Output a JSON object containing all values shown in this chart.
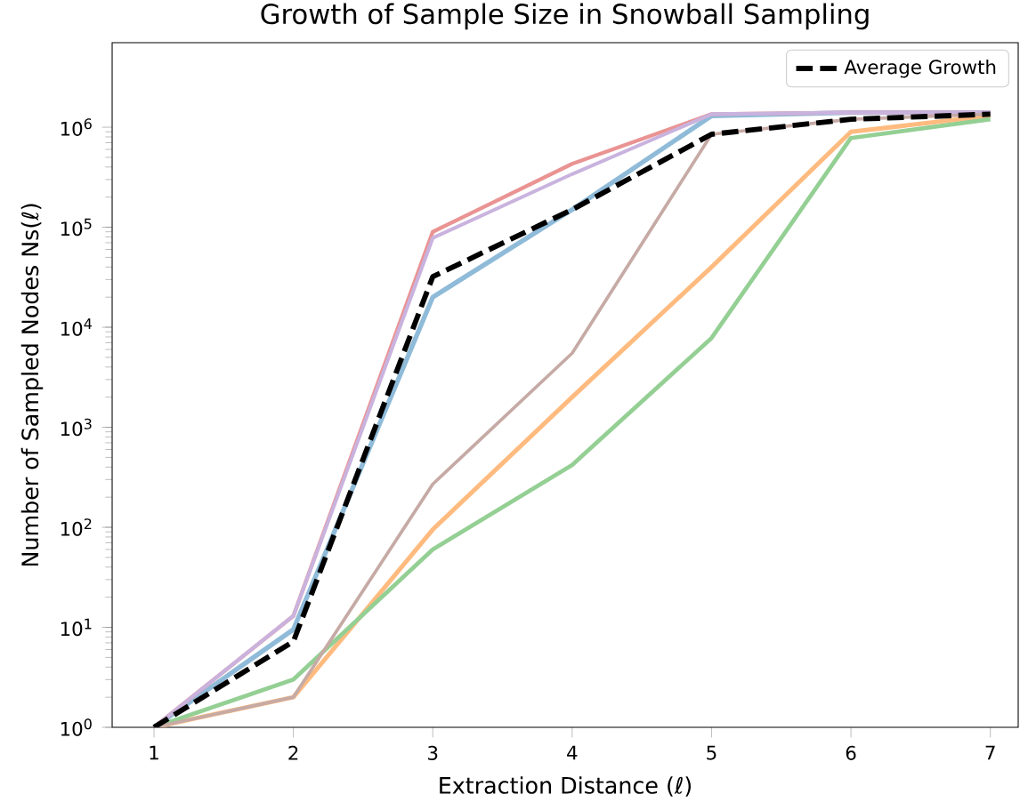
{
  "chart_data": {
    "type": "line",
    "title": "Growth of Sample Size in Snowball Sampling",
    "xlabel": "Extraction Distance (ℓ)",
    "ylabel": "Number of Sampled Nodes Ns(ℓ)",
    "x": [
      1,
      2,
      3,
      4,
      5,
      6,
      7
    ],
    "log": "y",
    "legend": "top right",
    "xlim": [
      0.7,
      7.2
    ],
    "ylim": [
      1,
      7000000
    ],
    "xticks": [
      1,
      2,
      3,
      4,
      5,
      6,
      7
    ],
    "yticks": [
      {
        "value": 1,
        "label": "10$^{0}$"
      },
      {
        "value": 10,
        "label": "10$^{1}$"
      },
      {
        "value": 100,
        "label": "10$^{2}$"
      },
      {
        "value": 1000,
        "label": "10$^{3}$"
      },
      {
        "value": 10000,
        "label": "10$^{4}$"
      },
      {
        "value": 100000,
        "label": "10$^{5}$"
      },
      {
        "value": 1000000,
        "label": "10$^{6}$"
      }
    ],
    "series": [
      {
        "color": "#8fbbd9",
        "values": [
          1,
          9.5,
          20000,
          150000,
          1300000,
          1400000,
          1400000
        ]
      },
      {
        "color": "#ffbb7f",
        "values": [
          1,
          2,
          95,
          2000,
          40000,
          900000,
          1300000
        ]
      },
      {
        "color": "#94cf94",
        "values": [
          1,
          3,
          60,
          420,
          7800,
          780000,
          1200000
        ]
      },
      {
        "color": "#ea9393",
        "values": [
          1,
          13,
          90000,
          430000,
          1350000,
          1400000,
          1400000
        ]
      },
      {
        "color": "#c9b3de",
        "values": [
          1,
          13,
          78000,
          340000,
          1350000,
          1400000,
          1400000
        ]
      },
      {
        "color": "#c6aaa5",
        "values": [
          1,
          2,
          270,
          5500,
          850000,
          1200000,
          1350000
        ]
      },
      {
        "name": "Average Growth",
        "color": "#000000",
        "line_style": "dashed",
        "values": [
          1,
          7.2,
          32000,
          150000,
          850000,
          1200000,
          1350000
        ]
      }
    ]
  }
}
